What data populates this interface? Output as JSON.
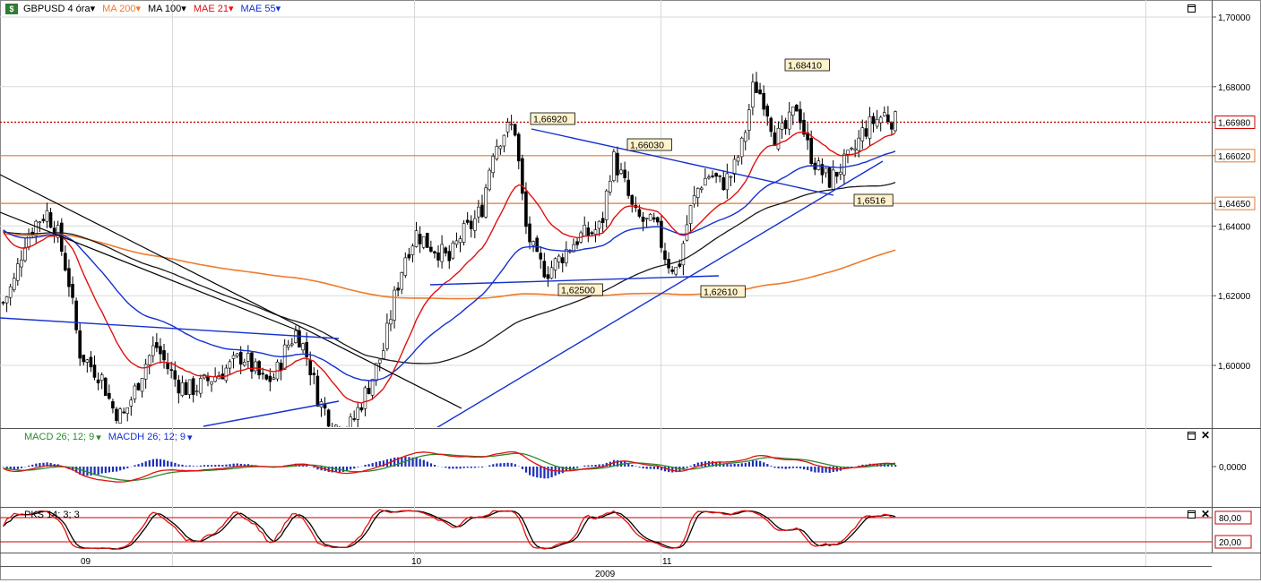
{
  "legend": {
    "symbol": "GBPUSD 4 óra",
    "ma200": "MA 200",
    "ma100": "MA 100",
    "mae21": "MAE 21",
    "mae55": "MAE 55"
  },
  "macd_legend": {
    "macd": "MACD 26; 12; 9",
    "macdh": "MACDH 26; 12; 9"
  },
  "pks_legend": {
    "pks": "PKS 14; 3; 3"
  },
  "colors": {
    "ma200": "#ef7b2e",
    "ma100": "#1a1a1a",
    "mae21": "#e01010",
    "mae55": "#1530d0",
    "up": "#ffffff",
    "down": "#000000",
    "macd_hist": "#1a2fb8",
    "signal": "#2a8a2a",
    "level_line": "#e07a30",
    "price_line": "#cc0000",
    "stoch_band": "#cc0000"
  },
  "chart_data": [
    {
      "type": "candlestick",
      "title": "GBPUSD 4 óra",
      "ylim": [
        1.582,
        1.7045
      ],
      "yticks": [
        "1,70000",
        "1,68000",
        "1,66980",
        "1,66020",
        "1,64650",
        "1,64000",
        "1,62000",
        "1,60000"
      ],
      "ytick_values": [
        1.7,
        1.68,
        1.6698,
        1.6602,
        1.6465,
        1.64,
        1.62,
        1.6
      ],
      "current_price": 1.6698,
      "horizontal_levels": [
        1.6602,
        1.6465
      ],
      "x_labels": [
        "09",
        "10",
        "2009",
        "11"
      ],
      "annotations": [
        {
          "label": "1,68410",
          "value": 1.6841
        },
        {
          "label": "1,66920",
          "value": 1.6692
        },
        {
          "label": "1,66030",
          "value": 1.6603
        },
        {
          "label": "1,6516",
          "value": 1.6516
        },
        {
          "label": "1,62500",
          "value": 1.625
        },
        {
          "label": "1,62610",
          "value": 1.6261
        }
      ],
      "price_path": [
        1.618,
        1.624,
        1.636,
        1.641,
        1.644,
        1.638,
        1.625,
        1.604,
        1.6,
        1.597,
        1.588,
        1.585,
        1.592,
        1.6,
        1.606,
        1.6,
        1.595,
        1.593,
        1.594,
        1.596,
        1.598,
        1.6,
        1.603,
        1.599,
        1.595,
        1.597,
        1.605,
        1.61,
        1.602,
        1.59,
        1.585,
        1.581,
        1.583,
        1.59,
        1.597,
        1.605,
        1.62,
        1.632,
        1.638,
        1.635,
        1.633,
        1.63,
        1.637,
        1.64,
        1.645,
        1.662,
        1.667,
        1.669,
        1.64,
        1.63,
        1.627,
        1.63,
        1.634,
        1.637,
        1.638,
        1.64,
        1.66,
        1.653,
        1.643,
        1.641,
        1.64,
        1.63,
        1.627,
        1.643,
        1.652,
        1.655,
        1.652,
        1.655,
        1.664,
        1.681,
        1.676,
        1.665,
        1.668,
        1.675,
        1.662,
        1.656,
        1.653,
        1.657,
        1.66,
        1.667,
        1.67,
        1.672,
        1.67
      ]
    },
    {
      "type": "histogram",
      "title": "MACD 26; 12; 9",
      "yticks": [
        "0,0000"
      ],
      "ytick_values": [
        0
      ]
    },
    {
      "type": "line",
      "title": "PKS 14; 3; 3",
      "ylim": [
        0,
        100
      ],
      "yticks": [
        "80,00",
        "20,00"
      ],
      "ytick_values": [
        80,
        20
      ]
    }
  ]
}
